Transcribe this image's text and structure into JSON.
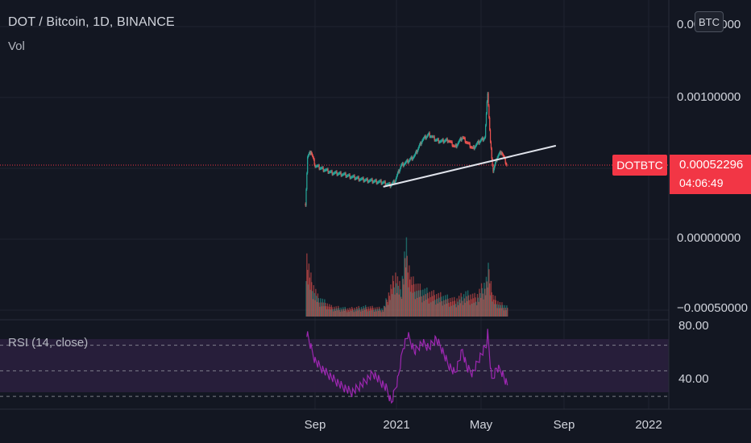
{
  "header": {
    "title": "DOT / Bitcoin, 1D, BINANCE",
    "volume_label": "Vol",
    "rsi_label": "RSI (14, close)"
  },
  "scale_button": "BTC",
  "symbol_tag": "DOTBTC",
  "last_price": "0.00052296",
  "countdown": "04:06:49",
  "price_axis": {
    "top_tick": "0.00150000",
    "ticks": [
      "0.00100000",
      "0.00000000",
      "−0.00050000"
    ]
  },
  "rsi_axis": {
    "ticks": [
      "80.00",
      "40.00"
    ]
  },
  "time_axis": {
    "ticks": [
      "Sep",
      "2021",
      "May",
      "Sep",
      "2022"
    ]
  },
  "colors": {
    "background": "#131722",
    "up": "#26a69a",
    "down": "#ef5350",
    "rsi_line": "#9c27b0",
    "rsi_band": "#3a2550",
    "last_price": "#f23645",
    "trendline": "#e0e3eb"
  },
  "chart_data": [
    {
      "type": "line",
      "title": "DOT / Bitcoin, 1D, BINANCE",
      "xlabel": "",
      "ylabel": "",
      "x": [
        "2020-08-18",
        "2020-08-21",
        "2020-08-26",
        "2020-09-01",
        "2020-09-10",
        "2020-09-25",
        "2020-10-10",
        "2020-10-25",
        "2020-11-10",
        "2020-11-25",
        "2020-12-10",
        "2020-12-20",
        "2020-12-27",
        "2021-01-05",
        "2021-01-15",
        "2021-01-25",
        "2021-02-05",
        "2021-02-15",
        "2021-02-25",
        "2021-03-05",
        "2021-03-15",
        "2021-03-25",
        "2021-04-05",
        "2021-04-12",
        "2021-04-20",
        "2021-04-30",
        "2021-05-08",
        "2021-05-12",
        "2021-05-16",
        "2021-05-20",
        "2021-05-26",
        "2021-06-01",
        "2021-06-09"
      ],
      "close": [
        0.00025,
        0.00058,
        0.00062,
        0.00052,
        0.0005,
        0.00047,
        0.00046,
        0.00044,
        0.00042,
        0.00041,
        0.0004,
        0.00038,
        0.00041,
        0.00052,
        0.00055,
        0.00059,
        0.0007,
        0.00074,
        0.0007,
        0.00069,
        0.0007,
        0.00065,
        0.00072,
        0.00068,
        0.00064,
        0.00069,
        0.00072,
        0.00104,
        0.00068,
        0.00048,
        0.00058,
        0.00062,
        0.000523
      ],
      "ylim": [
        -0.0005,
        0.0015
      ],
      "last_value": 0.00052296,
      "trendline": {
        "from": {
          "x": "2020-12-10",
          "y": 0.00037
        },
        "to": {
          "x": "2021-08-20",
          "y": 0.00066
        }
      }
    },
    {
      "type": "bar",
      "title": "Vol",
      "x": [
        "2020-08-19",
        "2020-08-25",
        "2020-09-05",
        "2020-09-25",
        "2020-10-20",
        "2020-11-15",
        "2020-12-10",
        "2020-12-28",
        "2021-01-05",
        "2021-01-12",
        "2021-01-20",
        "2021-02-05",
        "2021-02-20",
        "2021-03-10",
        "2021-03-25",
        "2021-04-10",
        "2021-04-25",
        "2021-05-10",
        "2021-05-14",
        "2021-05-20",
        "2021-05-30",
        "2021-06-10"
      ],
      "values": [
        1.0,
        0.6,
        0.3,
        0.15,
        0.12,
        0.15,
        0.12,
        0.65,
        0.4,
        1.1,
        0.55,
        0.4,
        0.35,
        0.3,
        0.25,
        0.35,
        0.3,
        0.55,
        0.75,
        0.3,
        0.2,
        0.15
      ]
    },
    {
      "type": "line",
      "title": "RSI (14, close)",
      "x": [
        "2020-08-20",
        "2020-08-26",
        "2020-09-01",
        "2020-09-10",
        "2020-09-25",
        "2020-10-10",
        "2020-10-25",
        "2020-11-10",
        "2020-11-25",
        "2020-12-05",
        "2020-12-15",
        "2020-12-22",
        "2021-01-01",
        "2021-01-08",
        "2021-01-15",
        "2021-01-25",
        "2021-02-05",
        "2021-02-15",
        "2021-02-25",
        "2021-03-05",
        "2021-03-15",
        "2021-03-25",
        "2021-04-05",
        "2021-04-12",
        "2021-04-20",
        "2021-04-30",
        "2021-05-10",
        "2021-05-12",
        "2021-05-18",
        "2021-05-25",
        "2021-06-01",
        "2021-06-10"
      ],
      "values": [
        80,
        68,
        58,
        52,
        45,
        38,
        33,
        40,
        48,
        42,
        36,
        25,
        45,
        68,
        78,
        65,
        72,
        68,
        75,
        68,
        55,
        48,
        66,
        52,
        48,
        60,
        70,
        80,
        42,
        52,
        50,
        38
      ],
      "ylim": [
        20,
        88
      ],
      "bands": [
        70,
        50,
        30
      ]
    }
  ]
}
